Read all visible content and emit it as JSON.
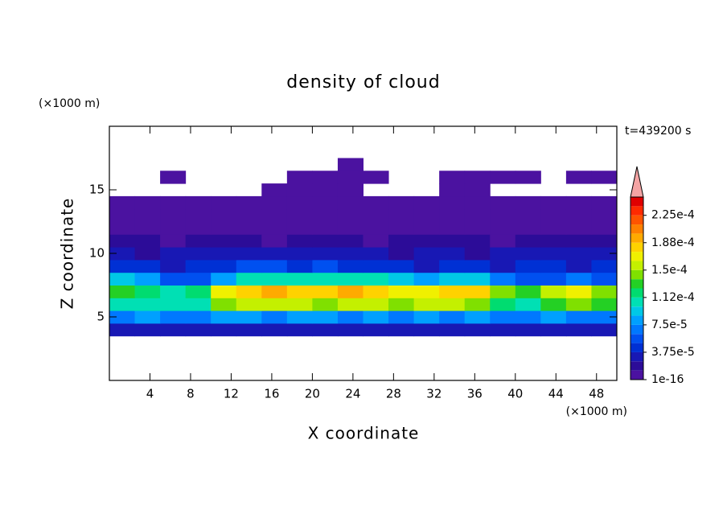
{
  "chart_data": {
    "type": "contour",
    "title": "density of cloud",
    "x_label": "X coordinate",
    "y_label": "Z coordinate",
    "x_unit": "(×1000 m)",
    "y_unit": "(×1000 m)",
    "time_label": "t=439200 s",
    "xlim": [
      0,
      50
    ],
    "ylim": [
      0,
      20
    ],
    "xticks": [
      4,
      8,
      12,
      16,
      20,
      24,
      28,
      32,
      36,
      40,
      44,
      48
    ],
    "yticks": [
      5,
      10,
      15
    ],
    "x_edges": [
      0,
      2.5,
      5,
      7.5,
      10,
      12.5,
      15,
      17.5,
      20,
      22.5,
      25,
      27.5,
      30,
      32.5,
      35,
      37.5,
      40,
      42.5,
      45,
      47.5,
      50
    ],
    "z_edges": [
      3.5,
      4.5,
      5.5,
      6.5,
      7.5,
      8.5,
      9.5,
      10.5,
      11.5,
      12.5,
      13.5,
      14.5,
      15.5,
      16.5,
      17.5
    ],
    "values": [
      [
        2.5e-05,
        2.5e-05,
        2.5e-05,
        2.5e-05,
        2.5e-05,
        2.5e-05,
        2.5e-05,
        2.5e-05,
        2.5e-05,
        2.5e-05,
        2.5e-05,
        2.5e-05,
        2.5e-05,
        2.5e-05,
        2.5e-05,
        2.5e-05,
        2.5e-05,
        2.5e-05,
        2.5e-05,
        2.5e-05
      ],
      [
        7e-05,
        8e-05,
        7e-05,
        7e-05,
        8e-05,
        8e-05,
        7e-05,
        8e-05,
        8e-05,
        7e-05,
        8e-05,
        7e-05,
        8e-05,
        7e-05,
        8e-05,
        7e-05,
        7e-05,
        8e-05,
        7e-05,
        7e-05
      ],
      [
        0.00011,
        0.00011,
        0.0001,
        0.00011,
        0.00014,
        0.00015,
        0.00015,
        0.00015,
        0.00014,
        0.00015,
        0.00015,
        0.00014,
        0.00015,
        0.00015,
        0.00014,
        0.00012,
        0.00011,
        0.00013,
        0.00014,
        0.00013
      ],
      [
        0.00013,
        0.00012,
        0.0001,
        0.00012,
        0.00017,
        0.00018,
        0.00019,
        0.00018,
        0.00018,
        0.00019,
        0.00018,
        0.00017,
        0.00017,
        0.00018,
        0.00018,
        0.00014,
        0.00013,
        0.00016,
        0.00017,
        0.00014
      ],
      [
        9e-05,
        8e-05,
        6e-05,
        6e-05,
        8e-05,
        0.0001,
        0.00011,
        0.0001,
        0.0001,
        0.00011,
        0.0001,
        9e-05,
        8e-05,
        9e-05,
        9e-05,
        7e-05,
        6e-05,
        6e-05,
        7e-05,
        6e-05
      ],
      [
        4e-05,
        4e-05,
        3e-05,
        4e-05,
        4e-05,
        5e-05,
        5e-05,
        4e-05,
        5e-05,
        4e-05,
        4e-05,
        4e-05,
        3e-05,
        4e-05,
        4e-05,
        3e-05,
        4e-05,
        4e-05,
        3e-05,
        4e-05
      ],
      [
        2.5e-05,
        2e-05,
        2.5e-05,
        2.5e-05,
        3e-05,
        2.5e-05,
        2.5e-05,
        3e-05,
        2.5e-05,
        2.5e-05,
        2.5e-05,
        2e-05,
        2.5e-05,
        2.5e-05,
        2e-05,
        2.5e-05,
        2.5e-05,
        3e-05,
        2.5e-05,
        2.5e-05
      ],
      [
        1.5e-05,
        1.5e-05,
        1e-05,
        1.5e-05,
        1.5e-05,
        1.5e-05,
        1e-05,
        1.5e-05,
        1.5e-05,
        1.5e-05,
        1e-05,
        1.5e-05,
        1.5e-05,
        1.5e-05,
        1.5e-05,
        1e-05,
        1.5e-05,
        1.5e-05,
        1.5e-05,
        1.5e-05
      ],
      [
        8e-06,
        8e-06,
        8e-06,
        8e-06,
        8e-06,
        8e-06,
        8e-06,
        8e-06,
        8e-06,
        8e-06,
        8e-06,
        8e-06,
        8e-06,
        8e-06,
        8e-06,
        8e-06,
        8e-06,
        8e-06,
        8e-06,
        8e-06
      ],
      [
        5e-06,
        5e-06,
        5e-06,
        5e-06,
        5e-06,
        5e-06,
        5e-06,
        5e-06,
        5e-06,
        5e-06,
        5e-06,
        5e-06,
        5e-06,
        5e-06,
        5e-06,
        5e-06,
        5e-06,
        5e-06,
        5e-06,
        5e-06
      ],
      [
        3e-06,
        3e-06,
        3e-06,
        3e-06,
        3e-06,
        3e-06,
        3e-06,
        3e-06,
        3e-06,
        3e-06,
        3e-06,
        3e-06,
        3e-06,
        3e-06,
        3e-06,
        3e-06,
        3e-06,
        3e-06,
        3e-06,
        3e-06
      ],
      [
        null,
        null,
        null,
        null,
        null,
        null,
        2e-06,
        2e-06,
        2e-06,
        2e-06,
        null,
        null,
        null,
        2e-06,
        2e-06,
        null,
        null,
        null,
        null,
        null
      ],
      [
        null,
        null,
        2e-06,
        null,
        null,
        null,
        null,
        2e-06,
        2e-06,
        2e-06,
        2e-06,
        null,
        null,
        2e-06,
        2e-06,
        2e-06,
        2e-06,
        null,
        2e-06,
        2e-06
      ],
      [
        null,
        null,
        null,
        null,
        null,
        null,
        null,
        null,
        null,
        2e-06,
        null,
        null,
        null,
        null,
        null,
        null,
        null,
        null,
        null,
        null
      ]
    ],
    "levels": [
      1e-16,
      1.25e-05,
      2.5e-05,
      3.75e-05,
      5e-05,
      6.25e-05,
      7.5e-05,
      8.75e-05,
      0.0001,
      0.0001125,
      0.000125,
      0.0001375,
      0.00015,
      0.0001625,
      0.000175,
      0.0001875,
      0.0002,
      0.0002125,
      0.000225,
      0.0002375,
      0.00025
    ],
    "colors": [
      "#4b12a0",
      "#2c0c98",
      "#1818b4",
      "#0030d4",
      "#0050f0",
      "#0078ff",
      "#00a0ff",
      "#00c8e6",
      "#00e0b4",
      "#00dc70",
      "#24d024",
      "#80e000",
      "#c4f000",
      "#f0f000",
      "#ffd200",
      "#ffaa00",
      "#ff8000",
      "#ff5400",
      "#ff2a00",
      "#e00000"
    ],
    "over_color": "#f4a4a4",
    "colorbar_ticks": [
      {
        "value": 1e-16,
        "label": "1e-16"
      },
      {
        "value": 3.75e-05,
        "label": "3.75e-5"
      },
      {
        "value": 7.5e-05,
        "label": "7.5e-5"
      },
      {
        "value": 0.0001125,
        "label": "1.12e-4"
      },
      {
        "value": 0.00015,
        "label": "1.5e-4"
      },
      {
        "value": 0.0001875,
        "label": "1.88e-4"
      },
      {
        "value": 0.000225,
        "label": "2.25e-4"
      }
    ]
  }
}
